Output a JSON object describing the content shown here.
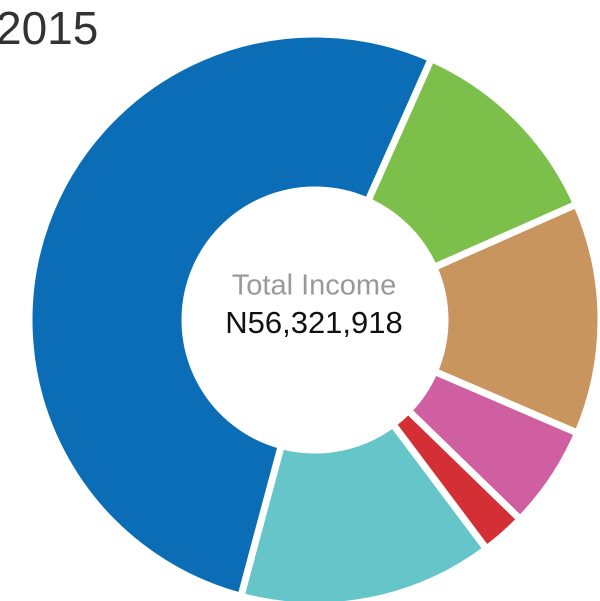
{
  "chart_data": {
    "type": "donut",
    "title": "2015",
    "center_label": "Total Income",
    "center_value": "N56,321,918",
    "values": [
      11.7,
      13.1,
      5.8,
      2.5,
      14.4,
      52.5
    ],
    "colors": [
      "#7cc04b",
      "#c9955f",
      "#cf5fa1",
      "#d32f34",
      "#66c5c8",
      "#0b6db5"
    ]
  }
}
